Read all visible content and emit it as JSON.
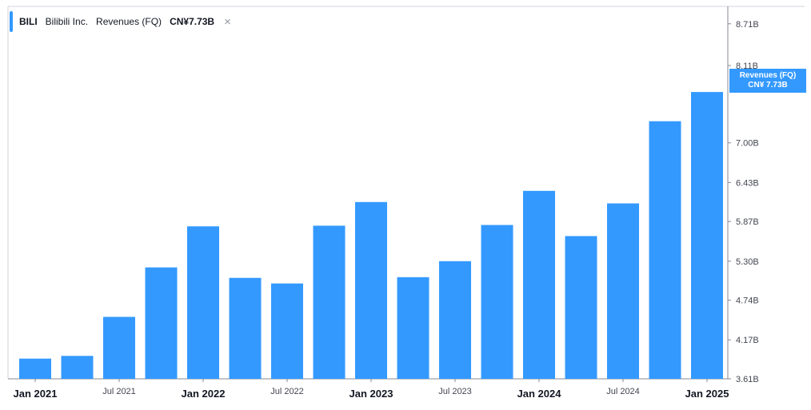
{
  "legend": {
    "symbol": "BILI",
    "company": "Bilibili Inc.",
    "metric": "Revenues (FQ)",
    "value": "CN¥7.73B",
    "close_glyph": "×"
  },
  "price_tag": {
    "line1": "Revenues (FQ)",
    "line2": "CN¥ 7.73B"
  },
  "colors": {
    "bar": "#3399ff",
    "axis": "#868993",
    "text": "#131722",
    "tick": "#434651"
  },
  "chart_data": {
    "type": "bar",
    "title": "",
    "xlabel": "",
    "ylabel": "",
    "series": [
      {
        "name": "Revenues (FQ)",
        "values": [
          3.9,
          3.94,
          4.5,
          5.21,
          5.8,
          5.06,
          4.98,
          5.81,
          6.15,
          5.07,
          5.3,
          5.82,
          6.31,
          5.66,
          6.13,
          7.31,
          7.73
        ]
      }
    ],
    "bar_count": 17,
    "ylim": [
      3.61,
      8.96
    ],
    "y_ticks": [
      {
        "value": 3.61,
        "label": "3.61B"
      },
      {
        "value": 4.17,
        "label": "4.17B"
      },
      {
        "value": 4.74,
        "label": "4.74B"
      },
      {
        "value": 5.3,
        "label": "5.30B"
      },
      {
        "value": 5.87,
        "label": "5.87B"
      },
      {
        "value": 6.43,
        "label": "6.43B"
      },
      {
        "value": 7.0,
        "label": "7.00B"
      },
      {
        "value": 8.11,
        "label": "8.11B"
      },
      {
        "value": 8.71,
        "label": "8.71B"
      }
    ],
    "x_ticks": [
      {
        "bar": 0,
        "label": "Jan 2021",
        "major": true
      },
      {
        "bar": 2,
        "label": "Jul 2021",
        "major": false
      },
      {
        "bar": 4,
        "label": "Jan 2022",
        "major": true
      },
      {
        "bar": 6,
        "label": "Jul 2022",
        "major": false
      },
      {
        "bar": 8,
        "label": "Jan 2023",
        "major": true
      },
      {
        "bar": 10,
        "label": "Jul 2023",
        "major": false
      },
      {
        "bar": 12,
        "label": "Jan 2024",
        "major": true
      },
      {
        "bar": 14,
        "label": "Jul 2024",
        "major": false
      },
      {
        "bar": 16,
        "label": "Jan 2025",
        "major": true
      }
    ],
    "grid": false,
    "legend_position": "top-left"
  }
}
